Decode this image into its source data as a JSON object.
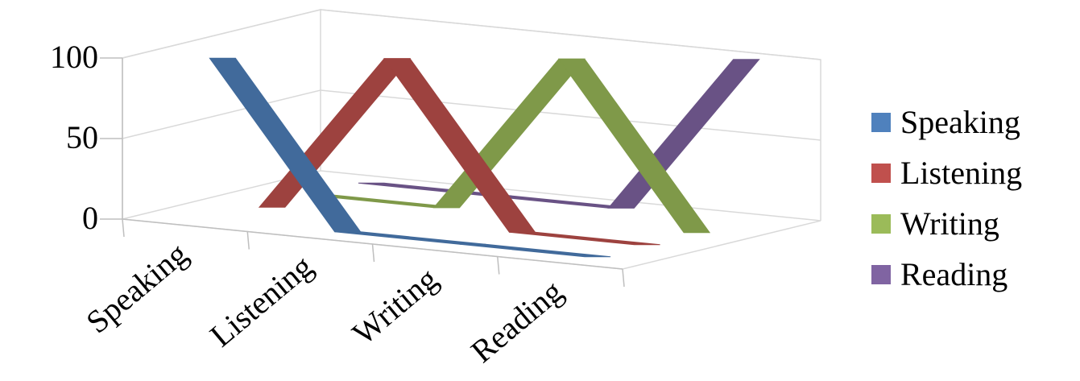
{
  "chart_data": {
    "type": "3d-line",
    "title": "",
    "xlabel": "",
    "ylabel": "",
    "ylim": [
      0,
      100
    ],
    "yticks": [
      0,
      50,
      100
    ],
    "categories": [
      "Speaking",
      "Listening",
      "Writing",
      "Reading"
    ],
    "series": [
      {
        "name": "Speaking",
        "color": "#4f81bd",
        "values": [
          100,
          0,
          0,
          0
        ]
      },
      {
        "name": "Listening",
        "color": "#c0504d",
        "values": [
          0,
          100,
          0,
          0
        ]
      },
      {
        "name": "Writing",
        "color": "#9bbb59",
        "values": [
          0,
          0,
          100,
          0
        ]
      },
      {
        "name": "Reading",
        "color": "#8064a2",
        "values": [
          0,
          0,
          0,
          100
        ]
      }
    ],
    "legend_position": "right",
    "grid": true
  }
}
